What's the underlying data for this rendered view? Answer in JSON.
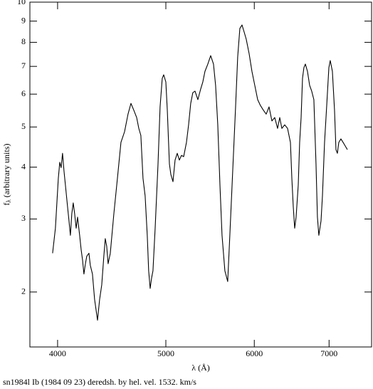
{
  "chart_data": {
    "type": "line",
    "x_label": "λ (Å)",
    "y_label": {
      "main": "f",
      "sub": "λ",
      "rest": " (arbitrary units)"
    },
    "caption": "sn1984l Ib (1984 09 23) deredsh. by hel. vel.  1532. km/s",
    "xlog": true,
    "ylog": true,
    "grid": false,
    "xlim": [
      3778,
      7641
    ],
    "ylim": [
      1.474,
      10
    ],
    "xticks": [
      4000,
      5000,
      6000,
      7000
    ],
    "yticks": [
      2,
      3,
      4,
      5,
      6,
      7,
      8,
      9,
      10
    ],
    "series": [
      {
        "color": "#000000",
        "x": [
          3959,
          3982,
          4006,
          4018,
          4029,
          4041,
          4053,
          4065,
          4083,
          4095,
          4107,
          4119,
          4131,
          4143,
          4156,
          4168,
          4186,
          4199,
          4211,
          4223,
          4236,
          4248,
          4267,
          4279,
          4298,
          4317,
          4343,
          4362,
          4381,
          4400,
          4413,
          4426,
          4439,
          4459,
          4492,
          4525,
          4558,
          4592,
          4625,
          4653,
          4680,
          4708,
          4729,
          4749,
          4770,
          4791,
          4812,
          4826,
          4841,
          4855,
          4869,
          4891,
          4920,
          4941,
          4963,
          4978,
          5000,
          5015,
          5037,
          5052,
          5074,
          5096,
          5119,
          5141,
          5164,
          5187,
          5217,
          5240,
          5263,
          5286,
          5310,
          5341,
          5372,
          5396,
          5420,
          5452,
          5484,
          5516,
          5540,
          5565,
          5590,
          5614,
          5647,
          5680,
          5705,
          5739,
          5773,
          5798,
          5824,
          5850,
          5876,
          5901,
          5936,
          5971,
          6006,
          6042,
          6077,
          6113,
          6149,
          6185,
          6222,
          6258,
          6295,
          6323,
          6351,
          6388,
          6426,
          6464,
          6483,
          6502,
          6521,
          6540,
          6569,
          6588,
          6608,
          6627,
          6646,
          6666,
          6695,
          6725,
          6754,
          6784,
          6814,
          6834,
          6854,
          6885,
          6905,
          6935,
          6966,
          6997,
          7017,
          7048,
          7079,
          7100,
          7121,
          7142,
          7173,
          7205,
          7237,
          7269
        ],
        "values": [
          2.48,
          2.85,
          3.76,
          4.11,
          3.99,
          4.32,
          3.92,
          3.62,
          3.21,
          2.97,
          2.74,
          3.09,
          3.28,
          3.09,
          2.85,
          3.03,
          2.74,
          2.53,
          2.39,
          2.21,
          2.34,
          2.44,
          2.48,
          2.32,
          2.21,
          1.92,
          1.71,
          1.92,
          2.08,
          2.44,
          2.69,
          2.58,
          2.34,
          2.48,
          3.09,
          3.76,
          4.59,
          4.87,
          5.37,
          5.7,
          5.49,
          5.27,
          4.96,
          4.77,
          3.76,
          3.41,
          2.74,
          2.25,
          2.04,
          2.16,
          2.25,
          2.85,
          4.07,
          5.59,
          6.55,
          6.68,
          6.42,
          5.49,
          4.07,
          3.84,
          3.69,
          4.16,
          4.32,
          4.16,
          4.27,
          4.24,
          4.59,
          5.06,
          5.7,
          6.05,
          6.1,
          5.82,
          6.17,
          6.42,
          6.81,
          7.09,
          7.43,
          7.09,
          6.3,
          5.06,
          3.62,
          2.74,
          2.25,
          2.12,
          2.74,
          3.92,
          5.59,
          7.37,
          8.64,
          8.81,
          8.47,
          8.14,
          7.52,
          6.81,
          6.3,
          5.82,
          5.63,
          5.49,
          5.37,
          5.59,
          5.17,
          5.27,
          4.96,
          5.27,
          4.96,
          5.06,
          4.96,
          4.59,
          3.76,
          3.21,
          2.85,
          3.03,
          3.62,
          4.59,
          5.27,
          6.55,
          6.95,
          7.09,
          6.81,
          6.3,
          6.1,
          5.82,
          4.07,
          3.03,
          2.74,
          2.97,
          3.41,
          4.59,
          5.63,
          6.95,
          7.23,
          6.81,
          5.49,
          4.41,
          4.32,
          4.59,
          4.68,
          4.59,
          4.5,
          4.41
        ]
      }
    ]
  }
}
